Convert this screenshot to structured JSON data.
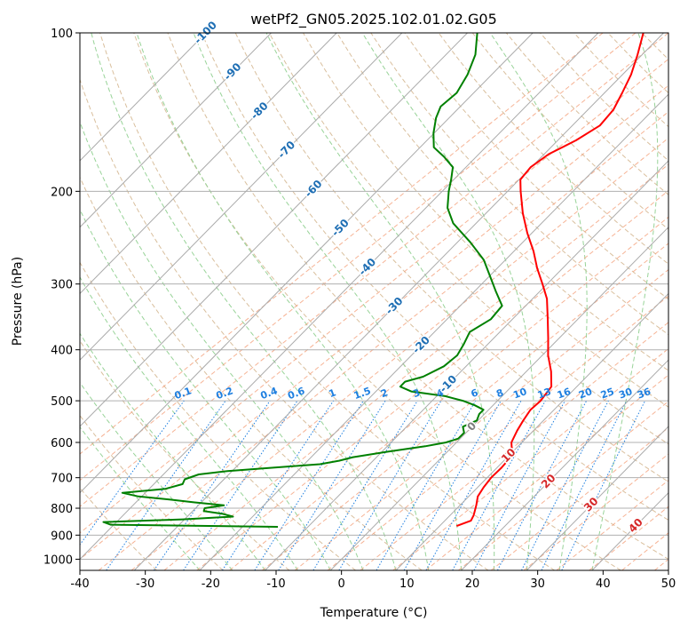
{
  "chart_data": {
    "type": "line",
    "title": "wetPf2_GN05.2025.102.01.02.G05",
    "xlabel": "Temperature (°C)",
    "ylabel": "Pressure (hPa)",
    "xlim": [
      -40,
      50
    ],
    "ylim": [
      1050,
      100
    ],
    "y_scale": "log",
    "skew": "skew-T",
    "grid": true,
    "x_ticks": [
      -40,
      -30,
      -20,
      -10,
      0,
      10,
      20,
      30,
      40,
      50
    ],
    "y_ticks": [
      1000,
      900,
      800,
      700,
      600,
      500,
      400,
      300,
      200,
      100
    ],
    "series": [
      {
        "role": "temperature",
        "color": "#ff0000",
        "points": [
          {
            "p": 865,
            "t": 12.6
          },
          {
            "p": 845,
            "t": 14.0
          },
          {
            "p": 825,
            "t": 13.6
          },
          {
            "p": 790,
            "t": 12.5
          },
          {
            "p": 760,
            "t": 11.4
          },
          {
            "p": 730,
            "t": 10.9
          },
          {
            "p": 700,
            "t": 10.6
          },
          {
            "p": 670,
            "t": 10.7
          },
          {
            "p": 640,
            "t": 10.5
          },
          {
            "p": 620,
            "t": 9.6
          },
          {
            "p": 600,
            "t": 8.4
          },
          {
            "p": 570,
            "t": 7.5
          },
          {
            "p": 545,
            "t": 6.9
          },
          {
            "p": 520,
            "t": 6.4
          },
          {
            "p": 500,
            "t": 6.6
          },
          {
            "p": 470,
            "t": 6.1
          },
          {
            "p": 440,
            "t": 3.8
          },
          {
            "p": 410,
            "t": 0.9
          },
          {
            "p": 380,
            "t": -1.7
          },
          {
            "p": 350,
            "t": -4.6
          },
          {
            "p": 320,
            "t": -7.8
          },
          {
            "p": 300,
            "t": -10.7
          },
          {
            "p": 280,
            "t": -13.9
          },
          {
            "p": 260,
            "t": -17.0
          },
          {
            "p": 240,
            "t": -20.7
          },
          {
            "p": 220,
            "t": -24.4
          },
          {
            "p": 200,
            "t": -28.0
          },
          {
            "p": 190,
            "t": -29.8
          },
          {
            "p": 180,
            "t": -30.1
          },
          {
            "p": 170,
            "t": -29.3
          },
          {
            "p": 160,
            "t": -27.2
          },
          {
            "p": 150,
            "t": -25.8
          },
          {
            "p": 140,
            "t": -26.1
          },
          {
            "p": 130,
            "t": -27.3
          },
          {
            "p": 120,
            "t": -28.7
          },
          {
            "p": 110,
            "t": -30.7
          },
          {
            "p": 100,
            "t": -33.1
          }
        ]
      },
      {
        "role": "dewpoint",
        "color": "#008000",
        "points": [
          {
            "p": 868,
            "t": -14.6
          },
          {
            "p": 860,
            "t": -40.5
          },
          {
            "p": 850,
            "t": -42.0
          },
          {
            "p": 840,
            "t": -30.3
          },
          {
            "p": 830,
            "t": -23.0
          },
          {
            "p": 820,
            "t": -25.0
          },
          {
            "p": 810,
            "t": -28.3
          },
          {
            "p": 800,
            "t": -28.6
          },
          {
            "p": 790,
            "t": -26.1
          },
          {
            "p": 780,
            "t": -31.0
          },
          {
            "p": 770,
            "t": -35.3
          },
          {
            "p": 760,
            "t": -40.5
          },
          {
            "p": 748,
            "t": -43.5
          },
          {
            "p": 735,
            "t": -37.5
          },
          {
            "p": 720,
            "t": -35.6
          },
          {
            "p": 705,
            "t": -36.0
          },
          {
            "p": 690,
            "t": -34.6
          },
          {
            "p": 680,
            "t": -30.7
          },
          {
            "p": 670,
            "t": -24.2
          },
          {
            "p": 660,
            "t": -17.6
          },
          {
            "p": 650,
            "t": -15.2
          },
          {
            "p": 640,
            "t": -13.6
          },
          {
            "p": 625,
            "t": -9.2
          },
          {
            "p": 610,
            "t": -4.2
          },
          {
            "p": 600,
            "t": -1.6
          },
          {
            "p": 590,
            "t": -0.3
          },
          {
            "p": 575,
            "t": -0.3
          },
          {
            "p": 560,
            "t": -1.4
          },
          {
            "p": 545,
            "t": -0.2
          },
          {
            "p": 530,
            "t": -0.8
          },
          {
            "p": 520,
            "t": -0.8
          },
          {
            "p": 510,
            "t": -2.8
          },
          {
            "p": 500,
            "t": -5.3
          },
          {
            "p": 490,
            "t": -8.7
          },
          {
            "p": 480,
            "t": -14.6
          },
          {
            "p": 470,
            "t": -17.0
          },
          {
            "p": 460,
            "t": -17.0
          },
          {
            "p": 450,
            "t": -15.0
          },
          {
            "p": 430,
            "t": -13.4
          },
          {
            "p": 410,
            "t": -13.0
          },
          {
            "p": 390,
            "t": -13.7
          },
          {
            "p": 370,
            "t": -14.6
          },
          {
            "p": 350,
            "t": -13.3
          },
          {
            "p": 330,
            "t": -13.6
          },
          {
            "p": 310,
            "t": -16.7
          },
          {
            "p": 290,
            "t": -19.9
          },
          {
            "p": 270,
            "t": -23.3
          },
          {
            "p": 250,
            "t": -28.0
          },
          {
            "p": 230,
            "t": -33.5
          },
          {
            "p": 215,
            "t": -36.7
          },
          {
            "p": 200,
            "t": -39.0
          },
          {
            "p": 190,
            "t": -40.4
          },
          {
            "p": 180,
            "t": -42.0
          },
          {
            "p": 172,
            "t": -44.9
          },
          {
            "p": 165,
            "t": -47.9
          },
          {
            "p": 155,
            "t": -50.1
          },
          {
            "p": 145,
            "t": -52.0
          },
          {
            "p": 138,
            "t": -53.0
          },
          {
            "p": 130,
            "t": -52.6
          },
          {
            "p": 120,
            "t": -53.7
          },
          {
            "p": 110,
            "t": -55.5
          },
          {
            "p": 100,
            "t": -58.5
          }
        ]
      }
    ],
    "reference_lines": {
      "isotherm_labels": [
        "-100",
        "-90",
        "-80",
        "-70",
        "-60",
        "-50",
        "-40",
        "-30",
        "-20",
        "-10",
        "0",
        "10",
        "20",
        "30",
        "40"
      ],
      "mixing_ratio_labels": [
        "0.1",
        "0.2",
        "0.4",
        "0.6",
        "1",
        "1.5",
        "2",
        "3",
        "4",
        "6",
        "8",
        "10",
        "13",
        "16",
        "20",
        "25",
        "30",
        "36"
      ]
    }
  },
  "colors": {
    "isotherm_line": "#aaaaaa",
    "dry_adiabat": "#d2b48c",
    "moist_adiabat": "#98d398",
    "saturated_line": "#f4a07a",
    "mixing_ratio": "#1e7fe0",
    "isotherm_label_cold": "#1f6fb4",
    "isotherm_label_zero": "#7f7f7f",
    "isotherm_label_warm": "#d62728"
  }
}
